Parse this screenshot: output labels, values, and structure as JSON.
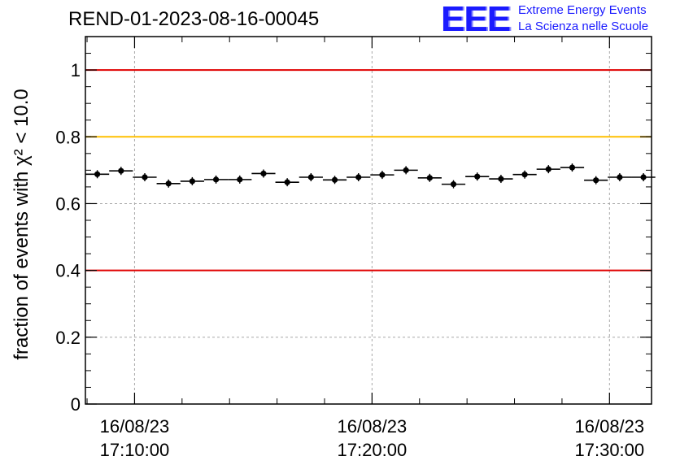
{
  "header": {
    "run_title": "REND-01-2023-08-16-00045"
  },
  "logo": {
    "mark": "EEE",
    "line1": "Extreme Energy Events",
    "line2": "La Scienza nelle Scuole",
    "color": "#1a1aff"
  },
  "chart_data": {
    "type": "scatter",
    "title": "REND-01-2023-08-16-00045",
    "ylabel": "fraction of events with χ² < 10.0",
    "xlabel": "",
    "x_unit": "minutes after 17:00:00 on 16/08/23",
    "ylim": [
      0,
      1.1
    ],
    "xlim": [
      7.93,
      31.77
    ],
    "grid": true,
    "y_ticks": [
      0,
      0.2,
      0.4,
      0.6,
      0.8,
      1
    ],
    "y_tick_labels": [
      "0",
      "0.2",
      "0.4",
      "0.6",
      "0.8",
      "1"
    ],
    "x_ticks": [
      10,
      20,
      30
    ],
    "x_tick_labels": [
      [
        "16/08/23",
        "17:10:00"
      ],
      [
        "16/08/23",
        "17:20:00"
      ],
      [
        "16/08/23",
        "17:30:00"
      ]
    ],
    "x_half_width": 0.5,
    "series": [
      {
        "x": [
          8.43,
          9.43,
          10.43,
          11.43,
          12.43,
          13.43,
          14.43,
          15.43,
          16.43,
          17.43,
          18.43,
          19.43,
          20.43,
          21.43,
          22.43,
          23.43,
          24.43,
          25.43,
          26.43,
          27.43,
          28.43,
          29.43,
          30.43,
          31.43
        ],
        "y": [
          0.688,
          0.698,
          0.679,
          0.66,
          0.667,
          0.672,
          0.672,
          0.69,
          0.664,
          0.679,
          0.671,
          0.679,
          0.686,
          0.7,
          0.677,
          0.658,
          0.681,
          0.674,
          0.687,
          0.703,
          0.708,
          0.67,
          0.679,
          0.679
        ],
        "color": "#000000"
      }
    ],
    "reference_lines": [
      {
        "y": 1.0,
        "color": "#e00000"
      },
      {
        "y": 0.8,
        "color": "#ffc000"
      },
      {
        "y": 0.4,
        "color": "#e00000"
      }
    ]
  }
}
